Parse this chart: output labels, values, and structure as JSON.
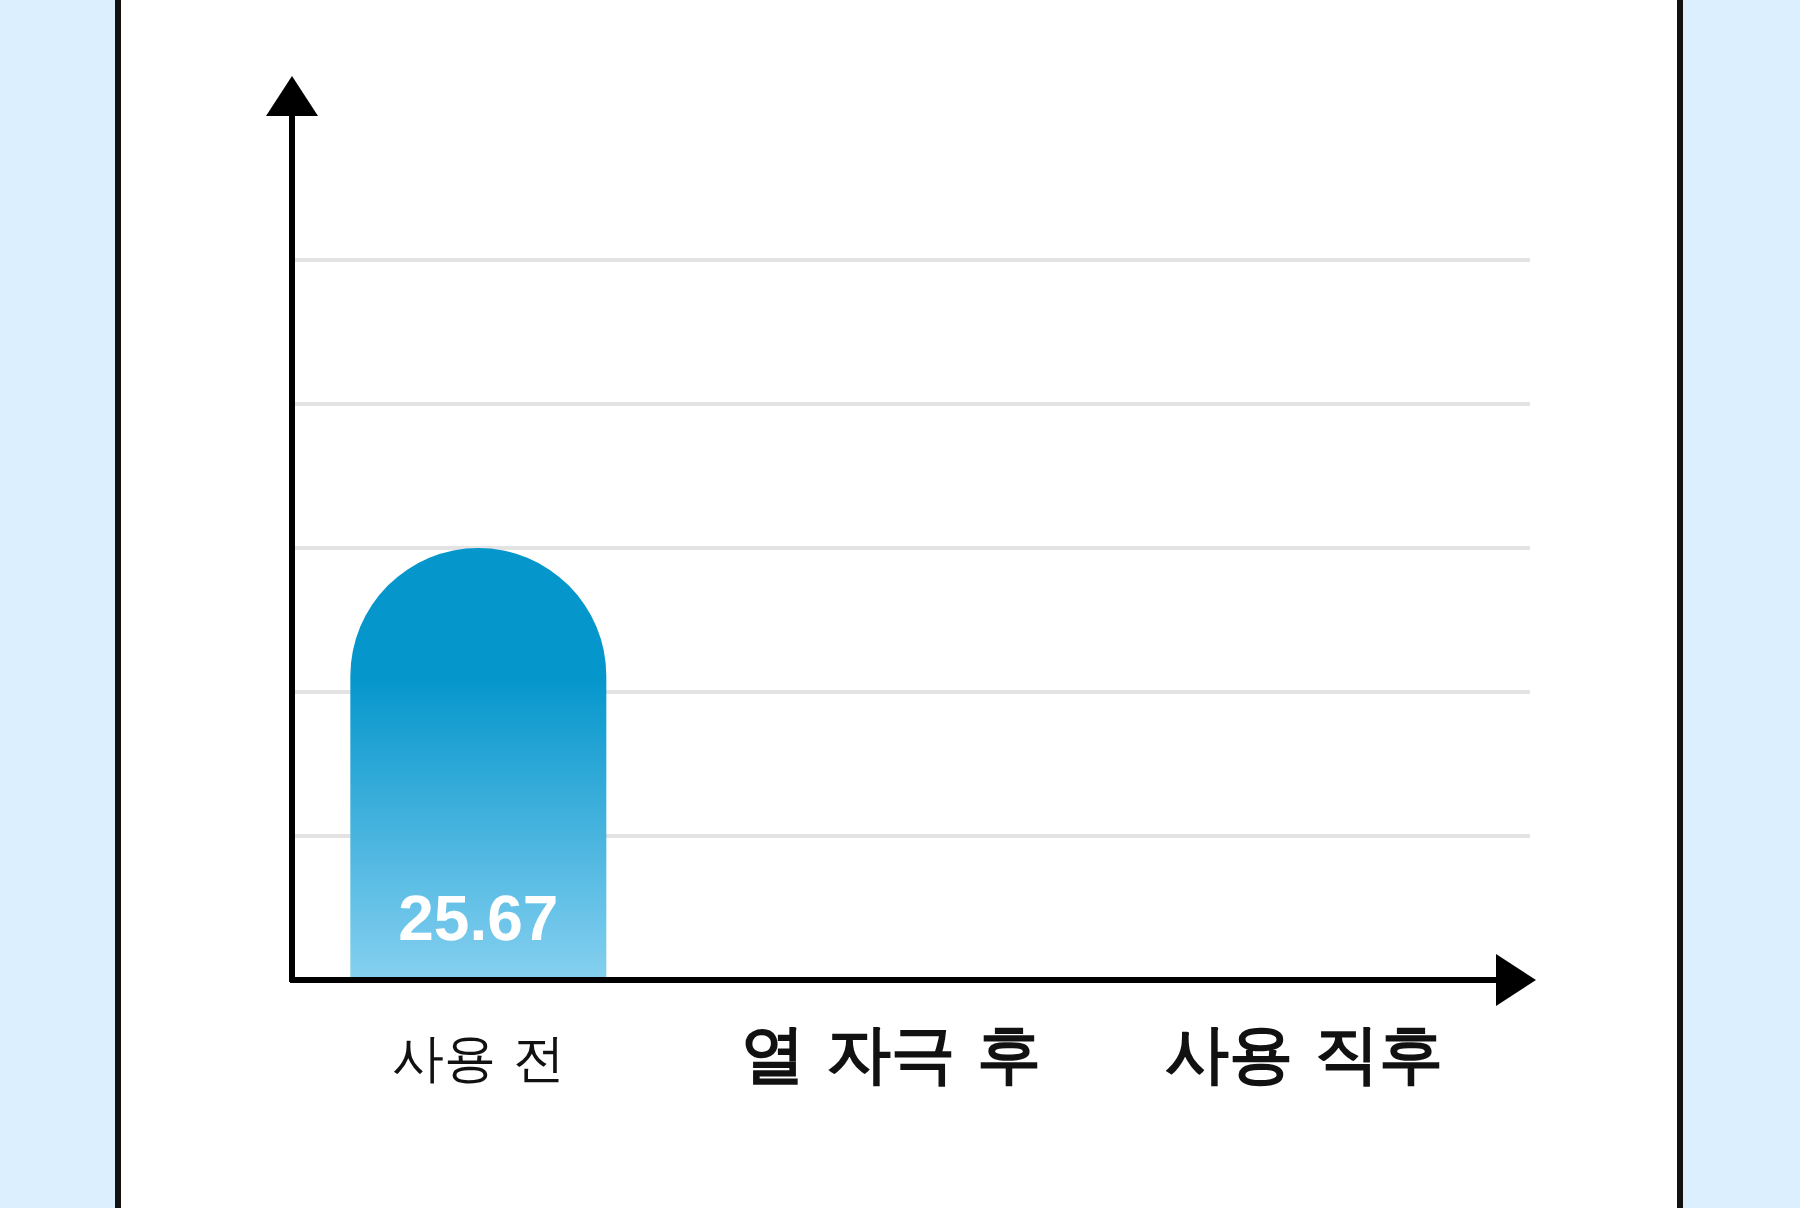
{
  "chart_data": {
    "type": "bar",
    "categories": [
      "사용 전",
      "열 자극 후",
      "사용 직후"
    ],
    "values": [
      25.67,
      null,
      null
    ],
    "color": "#0596cc",
    "data_labels": true,
    "grid": "y",
    "ylim": [
      0,
      51.7
    ],
    "yticks": [
      {
        "value": 8.56,
        "label": null
      },
      {
        "value": 17.11,
        "label": null
      },
      {
        "value": 25.67,
        "label": null
      },
      {
        "value": 34.23,
        "label": null
      },
      {
        "value": 42.78,
        "label": null
      }
    ]
  }
}
